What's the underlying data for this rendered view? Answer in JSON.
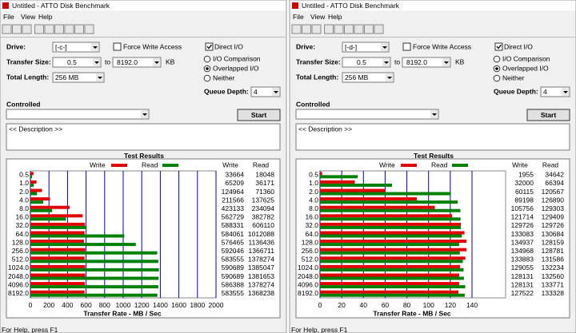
{
  "windows": [
    {
      "title": "Untitled - ATTO Disk Benchmark",
      "menu": [
        "File",
        "View",
        "Help"
      ],
      "drive_label": "Drive:",
      "drive": "[-c-]",
      "force_write": "Force Write Access",
      "direct_io": "Direct I/O",
      "transfer_size_label": "Transfer Size:",
      "transfer_from": "0.5",
      "to": "to",
      "transfer_to": "8192.0",
      "unit": "KB",
      "total_length_label": "Total Length:",
      "total_length": "256 MB",
      "io_comparison": "I/O Comparison",
      "overlapped": "Overlapped I/O",
      "neither": "Neither",
      "queue_depth_label": "Queue Depth:",
      "queue_depth": "4",
      "controlled": "Controlled",
      "start": "Start",
      "description": "<< Description >>",
      "status": "For Help, press F1"
    },
    {
      "title": "Untitled - ATTO Disk Benchmark",
      "menu": [
        "File",
        "View",
        "Help"
      ],
      "drive_label": "Drive:",
      "drive": "[-d-]",
      "force_write": "Force Write Access",
      "direct_io": "Direct I/O",
      "transfer_size_label": "Transfer Size:",
      "transfer_from": "0.5",
      "to": "to",
      "transfer_to": "8192.0",
      "unit": "KB",
      "total_length_label": "Total Length:",
      "total_length": "256 MB",
      "io_comparison": "I/O Comparison",
      "overlapped": "Overlapped I/O",
      "neither": "Neither",
      "queue_depth_label": "Queue Depth:",
      "queue_depth": "4",
      "controlled": "Controlled",
      "start": "Start",
      "description": "<< Description >>",
      "status": "For Help, press F1"
    }
  ],
  "chart_data": [
    {
      "type": "bar",
      "orientation": "horizontal",
      "title": "Test Results",
      "categories": [
        "0.5",
        "1.0",
        "2.0",
        "4.0",
        "8.0",
        "16.0",
        "32.0",
        "64.0",
        "128.0",
        "256.0",
        "512.0",
        "1024.0",
        "2048.0",
        "4096.0",
        "8192.0"
      ],
      "series": [
        {
          "name": "Write",
          "color": "#e00000",
          "values": [
            33664,
            65209,
            124964,
            211566,
            423133,
            562729,
            588331,
            584061,
            576465,
            592046,
            583555,
            590689,
            590689,
            586388,
            583555
          ]
        },
        {
          "name": "Read",
          "color": "#008000",
          "values": [
            18048,
            36171,
            71360,
            137625,
            234094,
            382782,
            606110,
            1012088,
            1136436,
            1366711,
            1378274,
            1385047,
            1381653,
            1378274,
            1368238
          ]
        }
      ],
      "table_headers": [
        "Write",
        "Read"
      ],
      "xlabel": "Transfer Rate - MB / Sec",
      "xlim": [
        0,
        2000000
      ],
      "xticks": [
        {
          "value": 0,
          "label": "0"
        },
        {
          "value": 200000,
          "label": "200"
        },
        {
          "value": 400000,
          "label": "400"
        },
        {
          "value": 600000,
          "label": "600"
        },
        {
          "value": 800000,
          "label": "800"
        },
        {
          "value": 1000000,
          "label": "1000"
        },
        {
          "value": 1200000,
          "label": "1200"
        },
        {
          "value": 1400000,
          "label": "1400"
        },
        {
          "value": 1600000,
          "label": "1600"
        },
        {
          "value": 1800000,
          "label": "1800"
        },
        {
          "value": 2000000,
          "label": "2000"
        }
      ],
      "grid": true,
      "grid_color": "#0000c0"
    },
    {
      "type": "bar",
      "orientation": "horizontal",
      "title": "Test Results",
      "categories": [
        "0.5",
        "1.0",
        "2.0",
        "4.0",
        "8.0",
        "16.0",
        "32.0",
        "64.0",
        "128.0",
        "256.0",
        "512.0",
        "1024.0",
        "2048.0",
        "4096.0",
        "8192.0"
      ],
      "series": [
        {
          "name": "Write",
          "color": "#e00000",
          "values": [
            1955,
            32000,
            60115,
            89198,
            105756,
            121714,
            129726,
            133083,
            134937,
            134968,
            133883,
            129055,
            128131,
            128131,
            127522
          ]
        },
        {
          "name": "Read",
          "color": "#008000",
          "values": [
            34642,
            66394,
            120567,
            126890,
            129303,
            129409,
            129726,
            130684,
            128159,
            128781,
            131586,
            132234,
            132560,
            133771,
            133328
          ]
        }
      ],
      "table_headers": [
        "Write",
        "Read"
      ],
      "xlabel": "Transfer Rate - MB / Sec",
      "xlim": [
        0,
        140000
      ],
      "xticks": [
        {
          "value": 0,
          "label": "0"
        },
        {
          "value": 20000,
          "label": "20"
        },
        {
          "value": 40000,
          "label": "40"
        },
        {
          "value": 60000,
          "label": "60"
        },
        {
          "value": 80000,
          "label": "80"
        },
        {
          "value": 100000,
          "label": "100"
        },
        {
          "value": 120000,
          "label": "120"
        },
        {
          "value": 140000,
          "label": "140"
        }
      ],
      "grid": true,
      "grid_color": "#0000c0"
    }
  ]
}
